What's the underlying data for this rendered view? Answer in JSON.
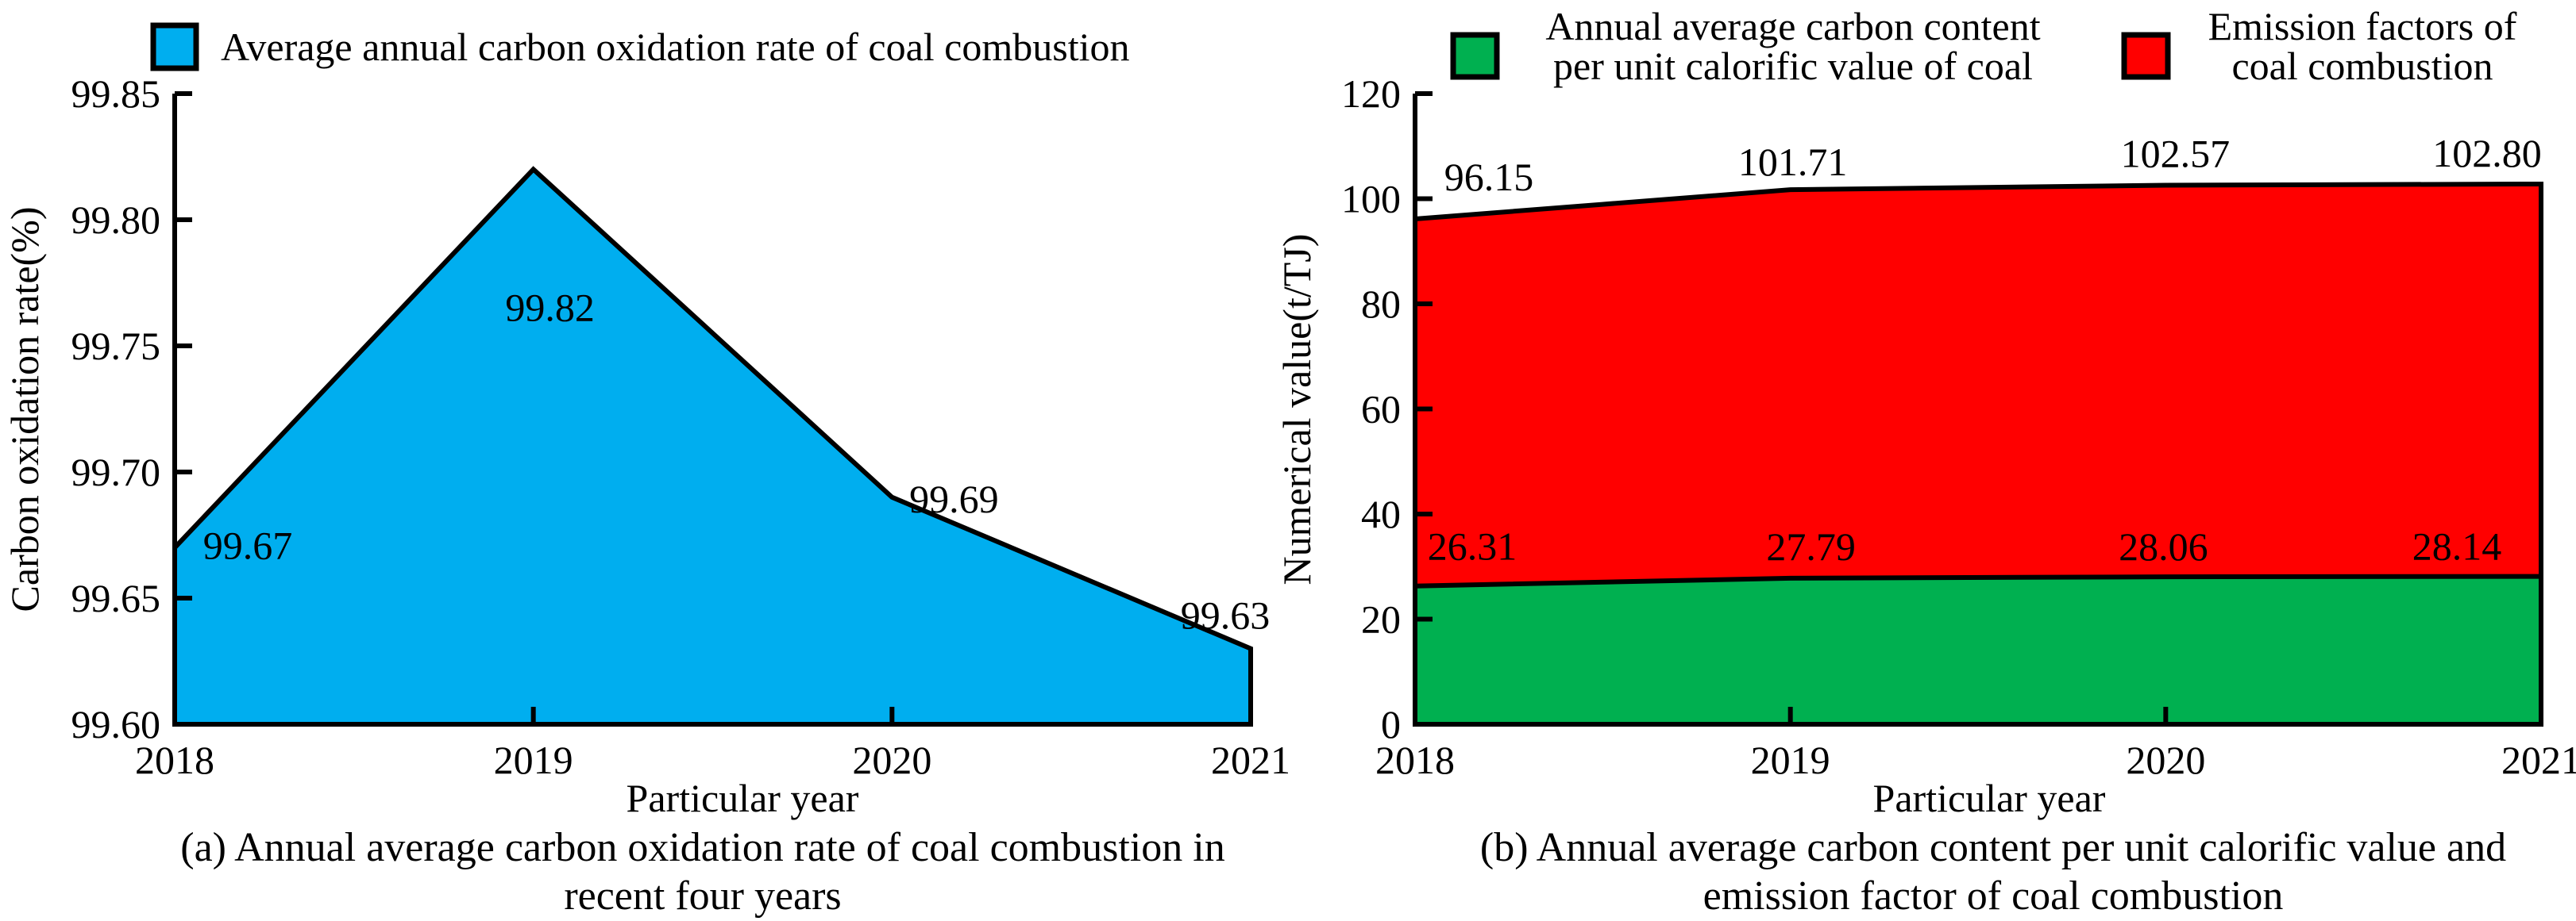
{
  "figure": {
    "background": "#ffffff",
    "text_color": "#000000"
  },
  "chart_data": [
    {
      "panel": "a",
      "type": "area",
      "categories": [
        "2018",
        "2019",
        "2020",
        "2021"
      ],
      "series": [
        {
          "name": "Average annual carbon oxidation rate of coal combustion",
          "legend_lines": [
            "Average annual carbon oxidation rate of coal combustion"
          ],
          "values": [
            99.67,
            99.82,
            99.69,
            99.63
          ],
          "data_labels": [
            "99.67",
            "99.82",
            "99.69",
            "99.63"
          ],
          "color": "#00AEEF"
        }
      ],
      "xlabel": "Particular year",
      "ylabel": "Carbon oxidation rate(%)",
      "ylim": [
        99.6,
        99.85
      ],
      "yticks": [
        "99.60",
        "99.65",
        "99.70",
        "99.75",
        "99.80",
        "99.85"
      ],
      "grid": false,
      "legend_position": "top",
      "caption_lines": [
        "(a) Annual average carbon oxidation rate of coal combustion in",
        "recent four years"
      ]
    },
    {
      "panel": "b",
      "type": "area-layered",
      "categories": [
        "2018",
        "2019",
        "2020",
        "2021"
      ],
      "series": [
        {
          "name": "Annual average carbon content per unit calorific value of coal",
          "legend_lines": [
            "Annual average carbon content",
            "per unit calorific value of coal"
          ],
          "values": [
            26.31,
            27.79,
            28.06,
            28.14
          ],
          "data_labels": [
            "26.31",
            "27.79",
            "28.06",
            "28.14"
          ],
          "color": "#00B050"
        },
        {
          "name": "Emission factors of coal combustion",
          "legend_lines": [
            "Emission factors of",
            "coal combustion"
          ],
          "values": [
            96.15,
            101.71,
            102.57,
            102.8
          ],
          "data_labels": [
            "96.15",
            "101.71",
            "102.57",
            "102.80"
          ],
          "color": "#FF0000"
        }
      ],
      "xlabel": "Particular year",
      "ylabel": "Numerical value(t/TJ)",
      "ylim": [
        0,
        120
      ],
      "yticks": [
        "0",
        "20",
        "40",
        "60",
        "80",
        "100",
        "120"
      ],
      "grid": false,
      "legend_position": "top",
      "caption_lines": [
        "(b) Annual average carbon content per unit calorific value and",
        "emission factor of coal combustion"
      ]
    }
  ]
}
